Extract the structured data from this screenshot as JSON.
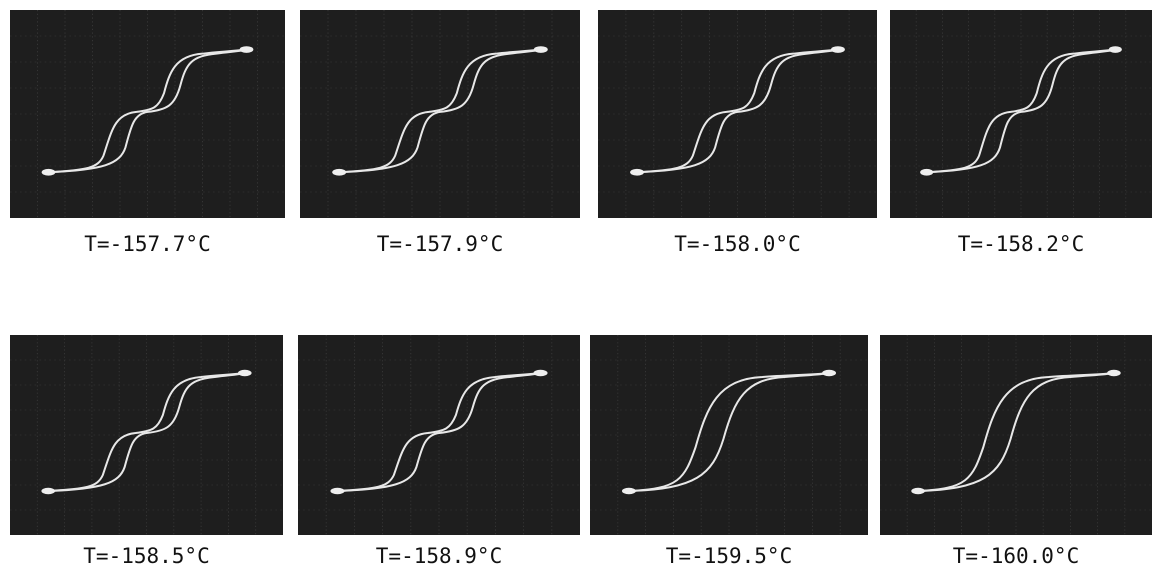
{
  "panels": [
    {
      "label": "T=-157.7°C"
    },
    {
      "label": "T=-157.9°C"
    },
    {
      "label": "T=-158.0°C"
    },
    {
      "label": "T=-158.2°C"
    },
    {
      "label": "T=-158.5°C"
    },
    {
      "label": "T=-158.9°C"
    },
    {
      "label": "T=-159.5°C"
    },
    {
      "label": "T=-160.0°C"
    }
  ]
}
